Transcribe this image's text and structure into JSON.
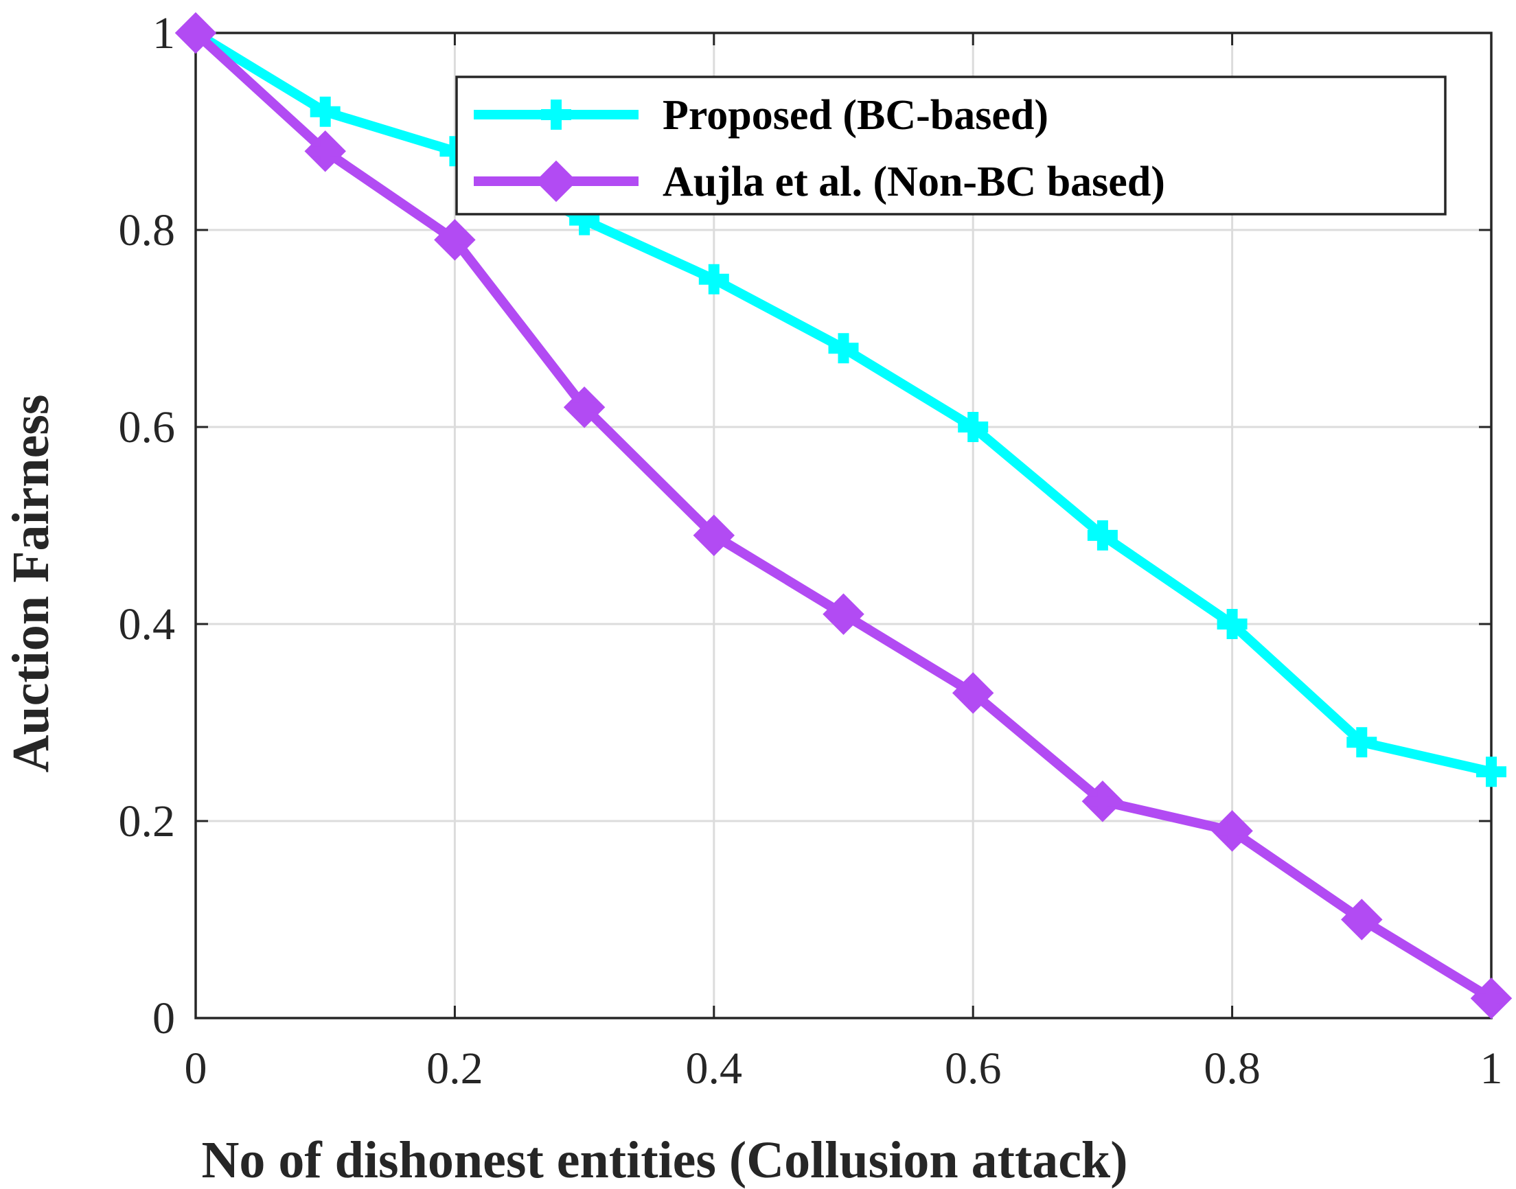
{
  "chart_data": {
    "type": "line",
    "title": "",
    "xlabel": "No of dishonest entities (Collusion attack)",
    "ylabel": "Auction Fairness",
    "xlim": [
      0,
      1
    ],
    "ylim": [
      0,
      1
    ],
    "x_ticks": [
      "0",
      "0.2",
      "0.4",
      "0.6",
      "0.8",
      "1"
    ],
    "y_ticks": [
      "0",
      "0.2",
      "0.4",
      "0.6",
      "0.8",
      "1"
    ],
    "grid": true,
    "legend_position": "top-right",
    "x": [
      0,
      0.1,
      0.2,
      0.3,
      0.4,
      0.5,
      0.6,
      0.7,
      0.8,
      0.9,
      1.0
    ],
    "series": [
      {
        "name": "Proposed (BC-based)",
        "color": "#00FFFF",
        "marker": "plus",
        "values": [
          1.0,
          0.92,
          0.88,
          0.81,
          0.75,
          0.68,
          0.6,
          0.49,
          0.4,
          0.28,
          0.25
        ]
      },
      {
        "name": "Aujla et al. (Non-BC based)",
        "color": "#B24BF3",
        "marker": "diamond",
        "values": [
          1.0,
          0.88,
          0.79,
          0.62,
          0.49,
          0.41,
          0.33,
          0.22,
          0.19,
          0.1,
          0.02
        ]
      }
    ]
  }
}
